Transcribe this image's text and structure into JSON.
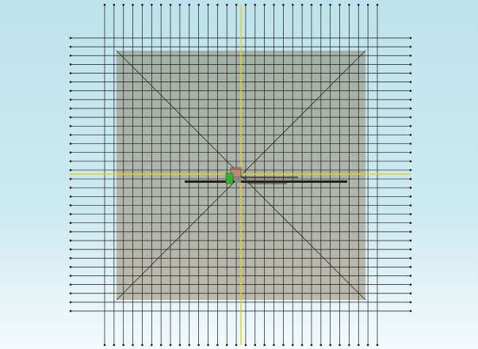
{
  "viewport": {
    "view": "top",
    "background": {
      "top": "#bfe3ec",
      "middle": "#cde9f0",
      "bottom": "#f3fafc"
    },
    "grid": {
      "line_color": "#1c1c1c",
      "vertical_line_count": 30,
      "horizontal_line_count": 32,
      "endpoint_markers": true
    },
    "ground_plane": {
      "fill_top": "#9fa89a",
      "fill_bottom": "#b4aea0",
      "diagonals": true
    },
    "axes": {
      "color": "#e2d21c"
    },
    "model": {
      "objects": [
        "box-object",
        "green-object",
        "long-beam",
        "short-beam"
      ],
      "colors": {
        "box": "#b78c74",
        "green": "#39b035",
        "beam": "#222222"
      }
    }
  }
}
